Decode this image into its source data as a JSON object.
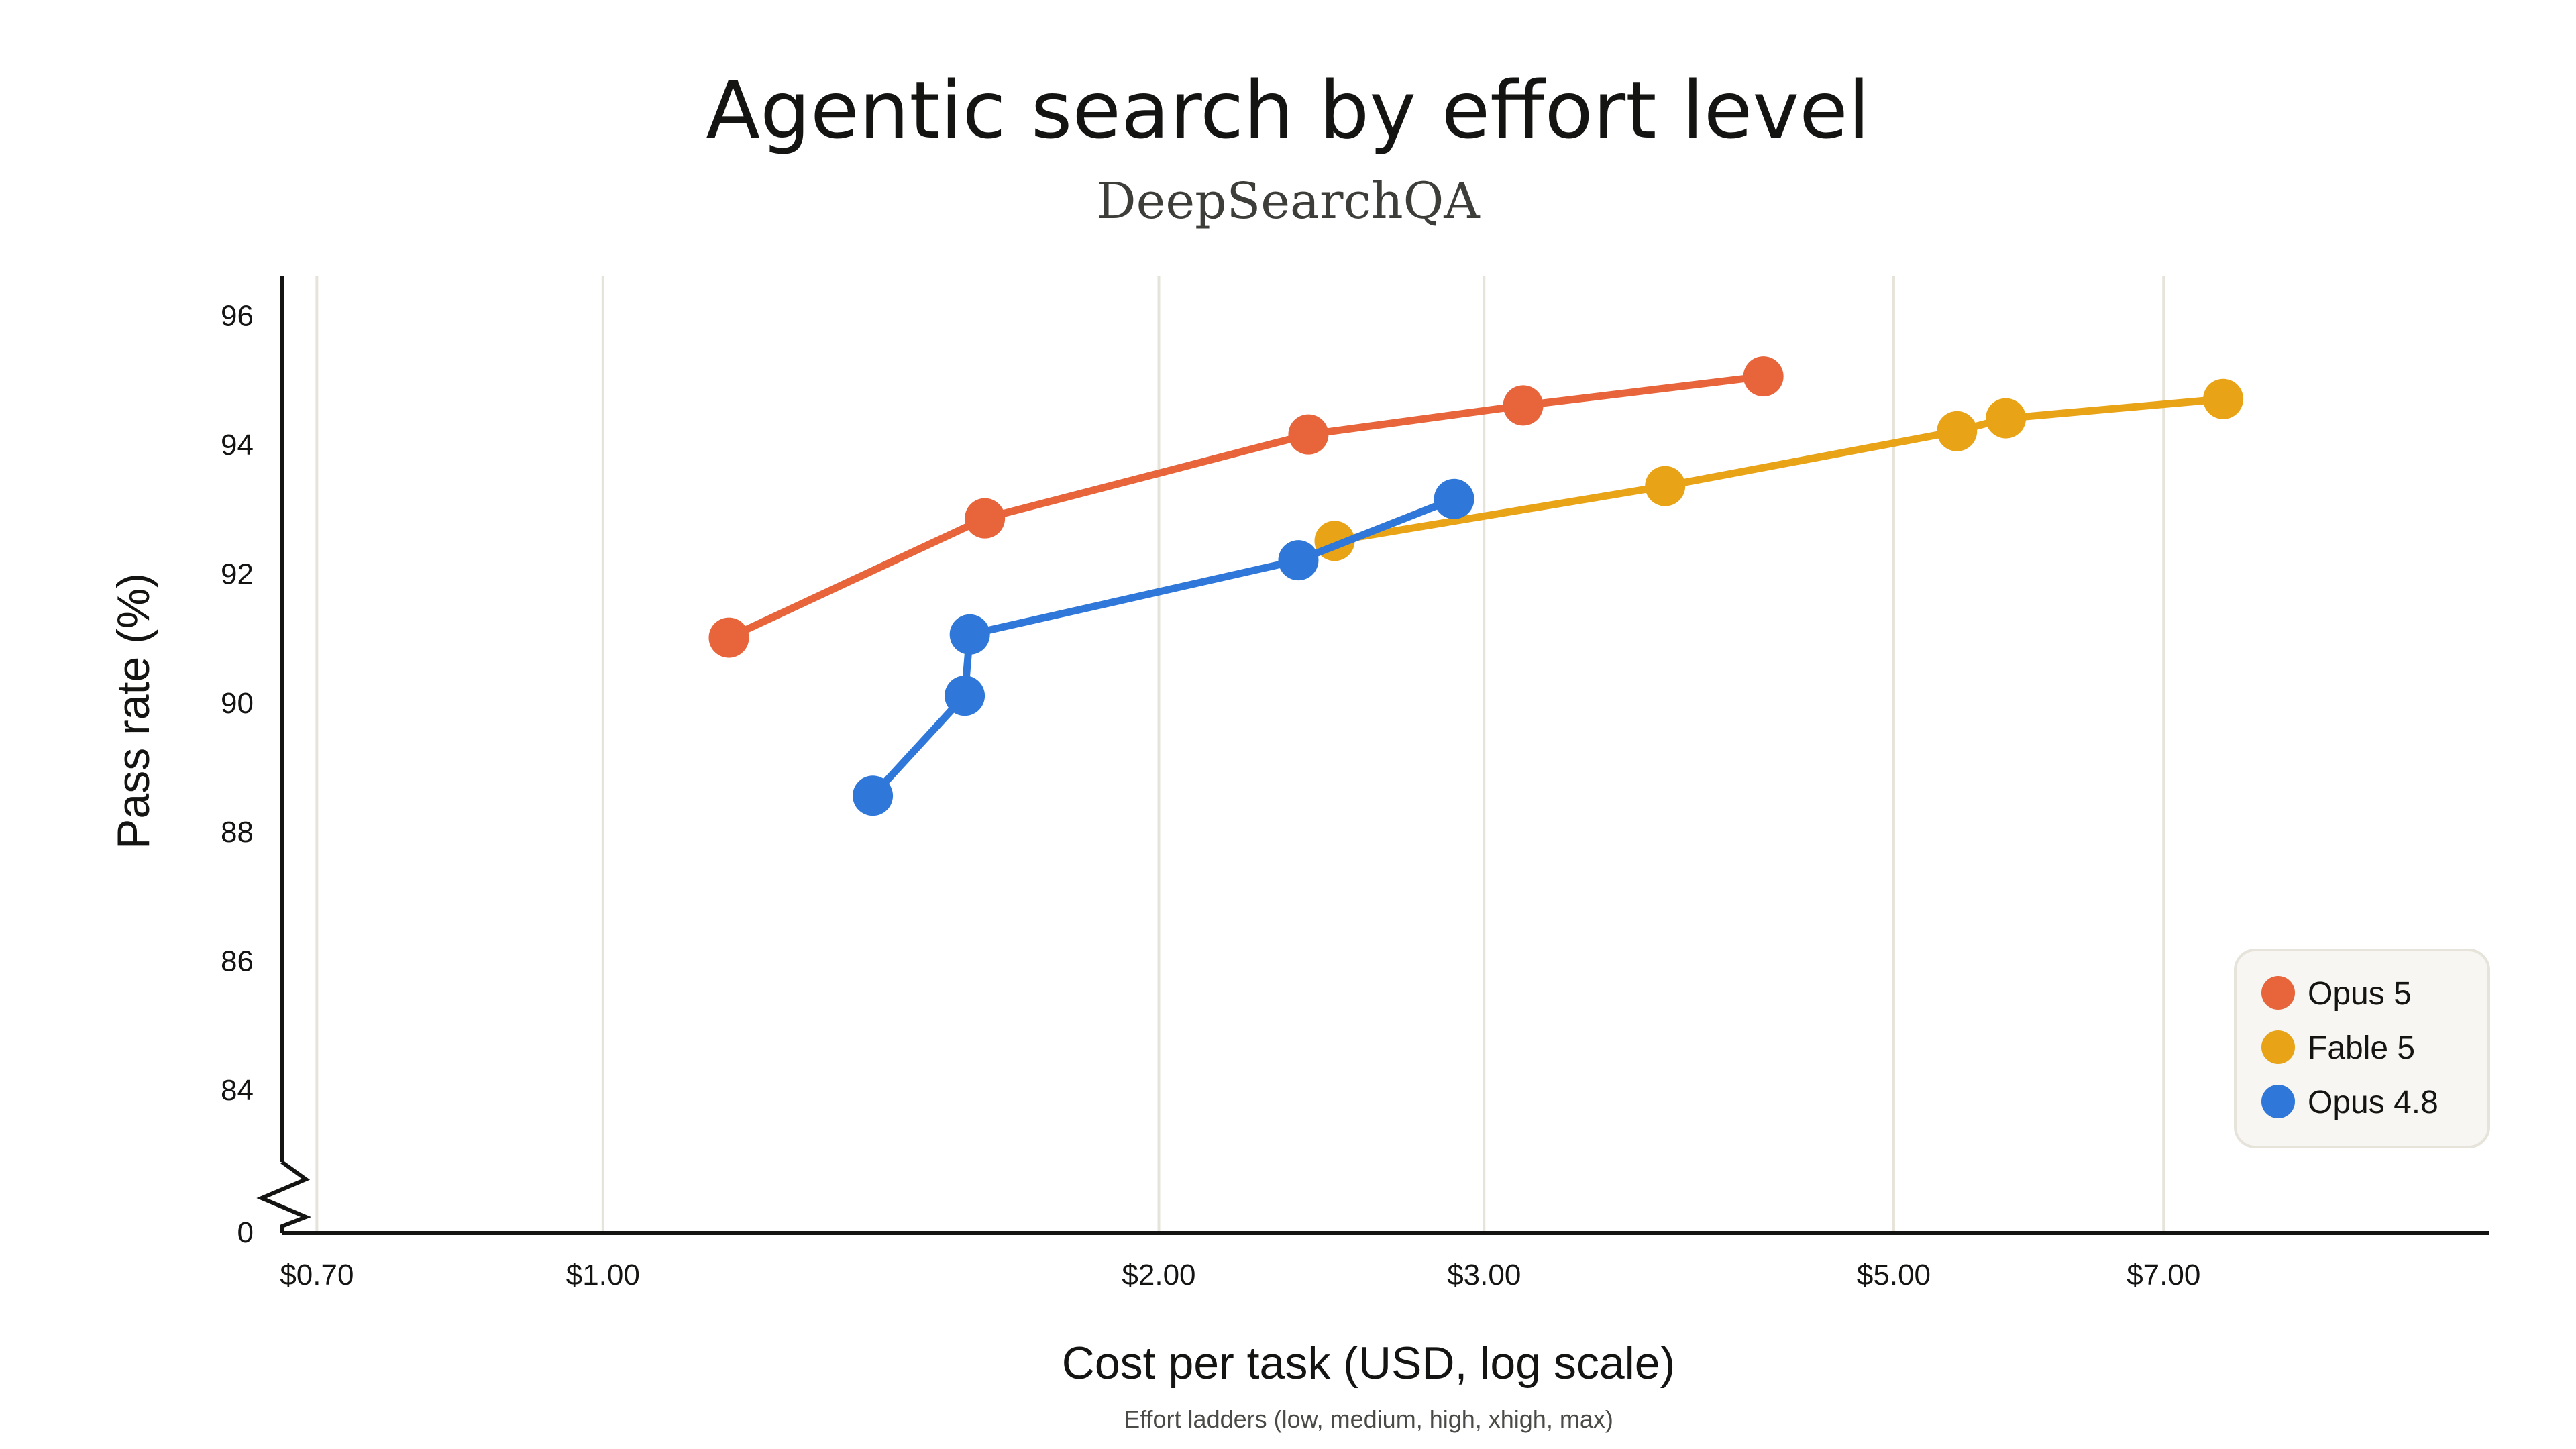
{
  "chart_data": {
    "type": "line",
    "title": "Agentic search by effort level",
    "subtitle": "DeepSearchQA",
    "xlabel": "Cost per task (USD, log scale)",
    "ylabel": "Pass rate (%)",
    "note": "Effort ladders (low, medium, high, xhigh, max)",
    "x_scale": "log",
    "xlim": [
      0.67,
      10.5
    ],
    "ylim": [
      83,
      96.6
    ],
    "y_axis_break": true,
    "grid": "vertical",
    "legend_position": "bottom-right",
    "x_ticks": [
      {
        "value": 0.7,
        "label": "$0.70"
      },
      {
        "value": 1.0,
        "label": "$1.00"
      },
      {
        "value": 2.0,
        "label": "$2.00"
      },
      {
        "value": 3.0,
        "label": "$3.00"
      },
      {
        "value": 5.0,
        "label": "$5.00"
      },
      {
        "value": 7.0,
        "label": "$7.00"
      }
    ],
    "y_ticks": [
      {
        "value": 96,
        "label": "96"
      },
      {
        "value": 94,
        "label": "94"
      },
      {
        "value": 92,
        "label": "92"
      },
      {
        "value": 90,
        "label": "90"
      },
      {
        "value": 88,
        "label": "88"
      },
      {
        "value": 86,
        "label": "86"
      },
      {
        "value": 84,
        "label": "84"
      }
    ],
    "y_break_label": "0",
    "series": [
      {
        "name": "Opus 5",
        "color": "#e8643a",
        "points": [
          {
            "x": 1.17,
            "y": 91.0
          },
          {
            "x": 1.61,
            "y": 92.85
          },
          {
            "x": 2.41,
            "y": 94.15
          },
          {
            "x": 3.15,
            "y": 94.6
          },
          {
            "x": 4.25,
            "y": 95.05
          }
        ]
      },
      {
        "name": "Fable 5",
        "color": "#e8a317",
        "points": [
          {
            "x": 2.49,
            "y": 92.5
          },
          {
            "x": 3.76,
            "y": 93.35
          },
          {
            "x": 5.41,
            "y": 94.2
          },
          {
            "x": 5.75,
            "y": 94.4
          },
          {
            "x": 7.54,
            "y": 94.7
          }
        ]
      },
      {
        "name": "Opus 4.8",
        "color": "#2f78d9",
        "points": [
          {
            "x": 1.4,
            "y": 88.55
          },
          {
            "x": 1.57,
            "y": 90.1
          },
          {
            "x": 1.58,
            "y": 91.05
          },
          {
            "x": 2.38,
            "y": 92.2
          },
          {
            "x": 2.89,
            "y": 93.15
          }
        ]
      }
    ]
  }
}
